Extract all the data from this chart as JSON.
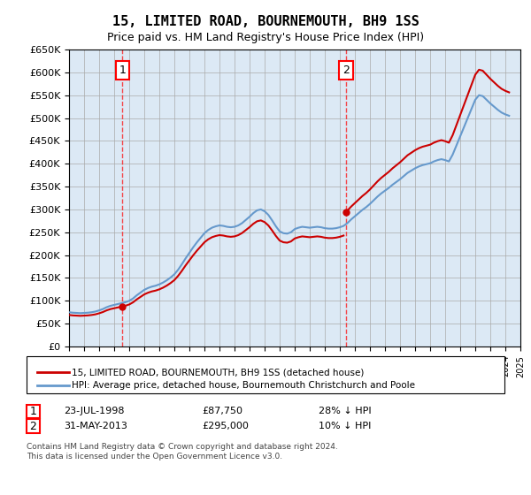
{
  "title": "15, LIMITED ROAD, BOURNEMOUTH, BH9 1SS",
  "subtitle": "Price paid vs. HM Land Registry's House Price Index (HPI)",
  "legend_line1": "15, LIMITED ROAD, BOURNEMOUTH, BH9 1SS (detached house)",
  "legend_line2": "HPI: Average price, detached house, Bournemouth Christchurch and Poole",
  "annotation1_label": "1",
  "annotation1_date": "23-JUL-1998",
  "annotation1_price": "£87,750",
  "annotation1_hpi": "28% ↓ HPI",
  "annotation1_year": 1998.55,
  "annotation1_value": 87750,
  "annotation2_label": "2",
  "annotation2_date": "31-MAY-2013",
  "annotation2_price": "£295,000",
  "annotation2_hpi": "10% ↓ HPI",
  "annotation2_year": 2013.41,
  "annotation2_value": 295000,
  "ylabel_max": 650000,
  "background_color": "#dce9f5",
  "plot_bg": "#dce9f5",
  "line_color_property": "#cc0000",
  "line_color_hpi": "#6699cc",
  "footnote": "Contains HM Land Registry data © Crown copyright and database right 2024.\nThis data is licensed under the Open Government Licence v3.0.",
  "hpi_data": {
    "years": [
      1995.0,
      1995.25,
      1995.5,
      1995.75,
      1996.0,
      1996.25,
      1996.5,
      1996.75,
      1997.0,
      1997.25,
      1997.5,
      1997.75,
      1998.0,
      1998.25,
      1998.5,
      1998.75,
      1999.0,
      1999.25,
      1999.5,
      1999.75,
      2000.0,
      2000.25,
      2000.5,
      2000.75,
      2001.0,
      2001.25,
      2001.5,
      2001.75,
      2002.0,
      2002.25,
      2002.5,
      2002.75,
      2003.0,
      2003.25,
      2003.5,
      2003.75,
      2004.0,
      2004.25,
      2004.5,
      2004.75,
      2005.0,
      2005.25,
      2005.5,
      2005.75,
      2006.0,
      2006.25,
      2006.5,
      2006.75,
      2007.0,
      2007.25,
      2007.5,
      2007.75,
      2008.0,
      2008.25,
      2008.5,
      2008.75,
      2009.0,
      2009.25,
      2009.5,
      2009.75,
      2010.0,
      2010.25,
      2010.5,
      2010.75,
      2011.0,
      2011.25,
      2011.5,
      2011.75,
      2012.0,
      2012.25,
      2012.5,
      2012.75,
      2013.0,
      2013.25,
      2013.5,
      2013.75,
      2014.0,
      2014.25,
      2014.5,
      2014.75,
      2015.0,
      2015.25,
      2015.5,
      2015.75,
      2016.0,
      2016.25,
      2016.5,
      2016.75,
      2017.0,
      2017.25,
      2017.5,
      2017.75,
      2018.0,
      2018.25,
      2018.5,
      2018.75,
      2019.0,
      2019.25,
      2019.5,
      2019.75,
      2020.0,
      2020.25,
      2020.5,
      2020.75,
      2021.0,
      2021.25,
      2021.5,
      2021.75,
      2022.0,
      2022.25,
      2022.5,
      2022.75,
      2023.0,
      2023.25,
      2023.5,
      2023.75,
      2024.0,
      2024.25
    ],
    "values": [
      75000,
      74000,
      73500,
      73000,
      73500,
      74000,
      75000,
      76500,
      79000,
      82000,
      86000,
      89000,
      91000,
      93000,
      95000,
      97000,
      100000,
      105000,
      112000,
      118000,
      124000,
      128000,
      131000,
      133000,
      136000,
      140000,
      145000,
      151000,
      158000,
      168000,
      180000,
      193000,
      205000,
      217000,
      228000,
      238000,
      248000,
      255000,
      260000,
      263000,
      265000,
      264000,
      262000,
      261000,
      262000,
      265000,
      270000,
      277000,
      284000,
      292000,
      298000,
      300000,
      296000,
      288000,
      276000,
      263000,
      252000,
      248000,
      247000,
      250000,
      257000,
      260000,
      262000,
      261000,
      260000,
      261000,
      262000,
      261000,
      259000,
      258000,
      258000,
      259000,
      261000,
      264000,
      270000,
      278000,
      285000,
      292000,
      299000,
      305000,
      312000,
      320000,
      328000,
      335000,
      341000,
      347000,
      354000,
      360000,
      366000,
      373000,
      380000,
      385000,
      390000,
      394000,
      397000,
      399000,
      401000,
      405000,
      408000,
      410000,
      408000,
      405000,
      420000,
      440000,
      460000,
      480000,
      500000,
      520000,
      540000,
      550000,
      548000,
      540000,
      532000,
      525000,
      518000,
      512000,
      508000,
      505000
    ]
  },
  "property_data": {
    "years": [
      1998.55,
      2013.41
    ],
    "values": [
      87750,
      295000
    ]
  },
  "xmin": 1995,
  "xmax": 2025,
  "ymin": 0,
  "ymax": 650000
}
